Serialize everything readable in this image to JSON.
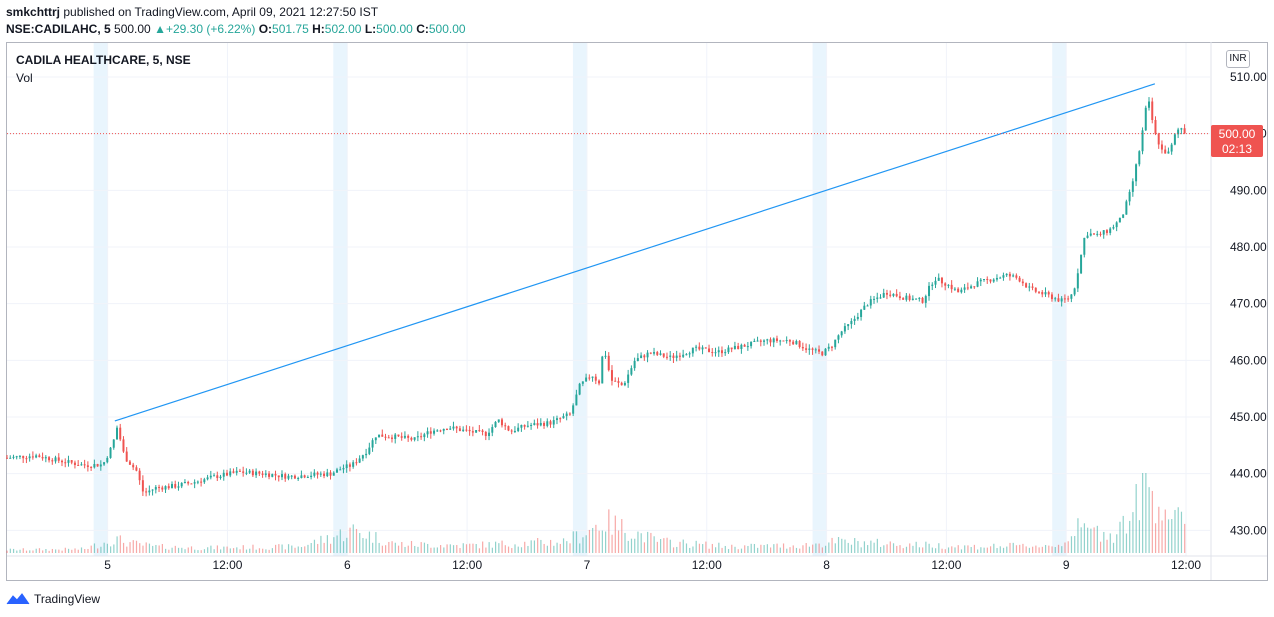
{
  "header": {
    "user": "smkchttrj",
    "published_text": "published on TradingView.com, April 09, 2021 12:27:50 IST"
  },
  "ohlc": {
    "symbol": "NSE:CADILAHC, 5",
    "last": "500.00",
    "change": "+29.30 (+6.22%)",
    "o_label": "O:",
    "o": "501.75",
    "h_label": "H:",
    "h": "502.00",
    "l_label": "L:",
    "l": "500.00",
    "c_label": "C:",
    "c": "500.00",
    "up_arrow": "▲"
  },
  "legend": {
    "title": "CADILA HEALTHCARE, 5, NSE",
    "volume_label": "Vol"
  },
  "currency": "INR",
  "price_label": {
    "price": "500.00",
    "countdown": "02:13"
  },
  "footer": {
    "logo_text": "TradingView",
    "logo_icon": "tradingview-logo-icon"
  },
  "colors": {
    "up": "#26a69a",
    "down": "#ef5350",
    "trendline": "#2196f3",
    "session_band": "#e3f2fd",
    "grid": "#f0f3fa",
    "axis_text": "#131722",
    "border": "#b2b5be"
  },
  "chart_data": {
    "type": "candlestick",
    "interval": "5",
    "y_axis": {
      "min": 426,
      "max": 516,
      "ticks": [
        430,
        440,
        450,
        460,
        470,
        480,
        490,
        500,
        510
      ],
      "tick_labels": [
        "430.00",
        "440.00",
        "450.00",
        "460.00",
        "470.00",
        "480.00",
        "490.00",
        "500.00",
        "510.00"
      ],
      "position": "right"
    },
    "x_axis": {
      "days": [
        {
          "label": "5",
          "session_start": 0.0,
          "session_end": 1.0
        },
        {
          "label": "6",
          "session_start": 1.0,
          "session_end": 2.0
        },
        {
          "label": "7",
          "session_start": 2.0,
          "session_end": 3.0
        },
        {
          "label": "8",
          "session_start": 3.0,
          "session_end": 4.0
        },
        {
          "label": "9",
          "session_start": 4.0,
          "session_end": 5.0
        }
      ],
      "tick_labels": [
        "5",
        "12:00",
        "6",
        "12:00",
        "7",
        "12:00",
        "8",
        "12:00",
        "9",
        "12:00"
      ],
      "tick_positions": [
        0.0,
        0.5,
        1.0,
        1.5,
        2.0,
        2.5,
        3.0,
        3.5,
        4.0,
        4.5
      ],
      "view_start": -0.42,
      "view_end": 4.6
    },
    "last_price": 500.0,
    "trendline": {
      "from": {
        "t": 0.03,
        "price": 449.3
      },
      "to": {
        "t": 4.37,
        "price": 508.8
      }
    },
    "price_path": [
      [
        -0.42,
        442.8
      ],
      [
        -0.3,
        443.2
      ],
      [
        -0.2,
        442.3
      ],
      [
        -0.1,
        441.5
      ],
      [
        -0.02,
        441.6
      ],
      [
        0.02,
        445.0
      ],
      [
        0.04,
        448.3
      ],
      [
        0.07,
        443.0
      ],
      [
        0.12,
        440.5
      ],
      [
        0.15,
        436.5
      ],
      [
        0.2,
        437.5
      ],
      [
        0.28,
        437.8
      ],
      [
        0.36,
        438.5
      ],
      [
        0.45,
        439.5
      ],
      [
        0.55,
        440.3
      ],
      [
        0.65,
        440.0
      ],
      [
        0.75,
        439.5
      ],
      [
        0.85,
        439.8
      ],
      [
        0.93,
        440.0
      ],
      [
        0.98,
        441.0
      ],
      [
        1.02,
        441.5
      ],
      [
        1.08,
        444.0
      ],
      [
        1.12,
        446.8
      ],
      [
        1.2,
        446.5
      ],
      [
        1.28,
        446.0
      ],
      [
        1.35,
        447.5
      ],
      [
        1.42,
        448.2
      ],
      [
        1.5,
        447.5
      ],
      [
        1.58,
        447.0
      ],
      [
        1.63,
        449.5
      ],
      [
        1.68,
        447.5
      ],
      [
        1.75,
        448.5
      ],
      [
        1.85,
        449.0
      ],
      [
        1.93,
        450.5
      ],
      [
        1.97,
        455.5
      ],
      [
        2.02,
        457.5
      ],
      [
        2.05,
        456.0
      ],
      [
        2.07,
        462.5
      ],
      [
        2.1,
        456.5
      ],
      [
        2.15,
        455.5
      ],
      [
        2.2,
        460.0
      ],
      [
        2.26,
        461.3
      ],
      [
        2.35,
        460.5
      ],
      [
        2.45,
        462.0
      ],
      [
        2.55,
        461.5
      ],
      [
        2.65,
        462.5
      ],
      [
        2.75,
        463.5
      ],
      [
        2.85,
        463.5
      ],
      [
        2.92,
        462.0
      ],
      [
        2.98,
        461.2
      ],
      [
        3.02,
        462.5
      ],
      [
        3.06,
        465.0
      ],
      [
        3.1,
        466.5
      ],
      [
        3.17,
        470.0
      ],
      [
        3.25,
        472.0
      ],
      [
        3.33,
        471.0
      ],
      [
        3.4,
        470.5
      ],
      [
        3.45,
        474.5
      ],
      [
        3.5,
        473.5
      ],
      [
        3.55,
        472.0
      ],
      [
        3.62,
        473.5
      ],
      [
        3.7,
        474.5
      ],
      [
        3.75,
        475.0
      ],
      [
        3.8,
        474.5
      ],
      [
        3.85,
        472.5
      ],
      [
        3.92,
        471.5
      ],
      [
        3.98,
        470.5
      ],
      [
        4.01,
        471.0
      ],
      [
        4.03,
        472.0
      ],
      [
        4.05,
        476.0
      ],
      [
        4.08,
        482.5
      ],
      [
        4.13,
        482.0
      ],
      [
        4.18,
        483.0
      ],
      [
        4.23,
        485.0
      ],
      [
        4.27,
        490.0
      ],
      [
        4.31,
        498.0
      ],
      [
        4.34,
        506.5
      ],
      [
        4.37,
        500.0
      ],
      [
        4.4,
        497.0
      ],
      [
        4.43,
        496.5
      ],
      [
        4.46,
        500.5
      ],
      [
        4.48,
        501.0
      ],
      [
        4.5,
        500.0
      ]
    ],
    "volume": [
      [
        -0.42,
        5
      ],
      [
        -0.1,
        6
      ],
      [
        0.03,
        22
      ],
      [
        0.1,
        15
      ],
      [
        0.2,
        10
      ],
      [
        0.4,
        8
      ],
      [
        0.6,
        9
      ],
      [
        0.8,
        10
      ],
      [
        1.03,
        36
      ],
      [
        1.2,
        14
      ],
      [
        1.5,
        12
      ],
      [
        1.9,
        18
      ],
      [
        1.97,
        28
      ],
      [
        2.07,
        50
      ],
      [
        2.3,
        18
      ],
      [
        2.6,
        10
      ],
      [
        2.9,
        12
      ],
      [
        3.05,
        18
      ],
      [
        3.3,
        14
      ],
      [
        3.6,
        10
      ],
      [
        3.97,
        12
      ],
      [
        4.04,
        38
      ],
      [
        4.2,
        30
      ],
      [
        4.28,
        65
      ],
      [
        4.33,
        110
      ],
      [
        4.37,
        90
      ],
      [
        4.45,
        55
      ],
      [
        4.5,
        40
      ]
    ],
    "volume_scale_max": 120,
    "grid": true
  }
}
